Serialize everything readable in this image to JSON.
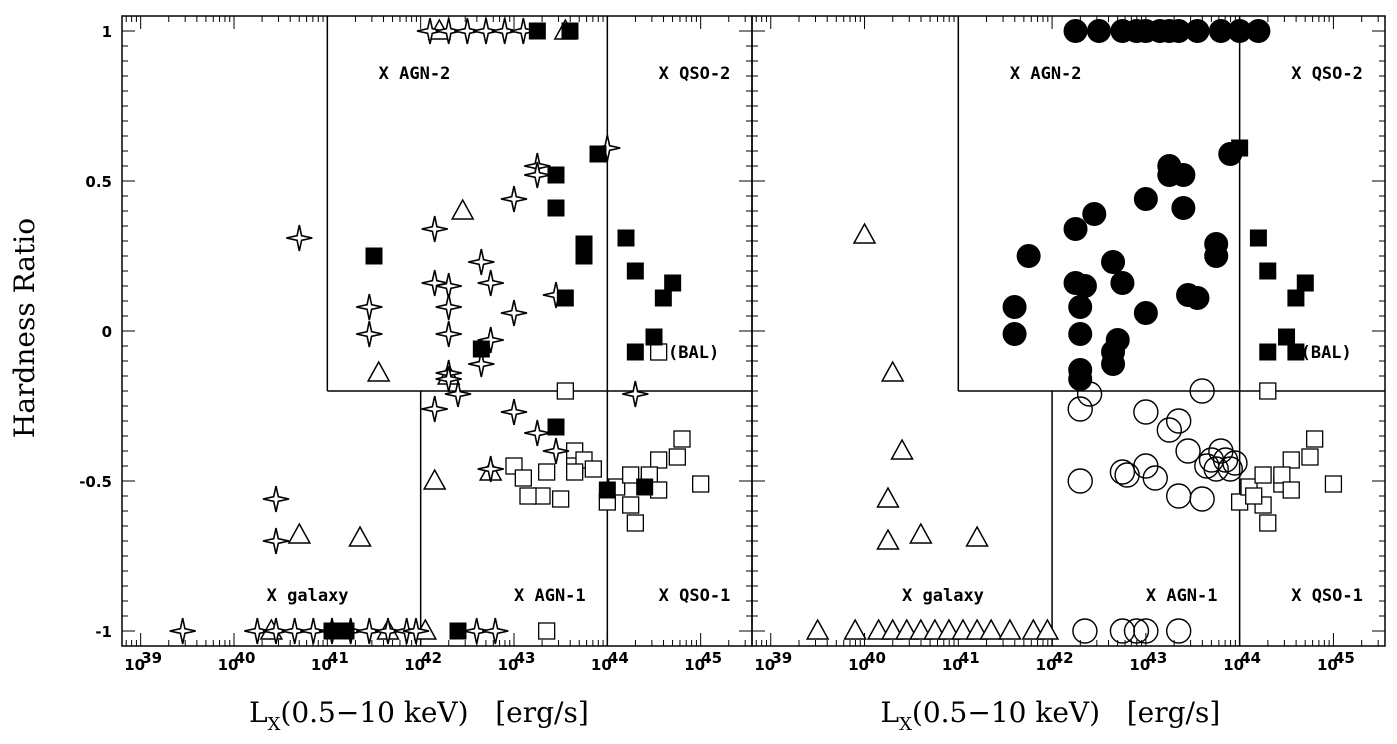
{
  "chart_data": {
    "type": "scatter",
    "ylabel": "Hardness Ratio",
    "xlim_log": [
      38.8,
      45.55
    ],
    "ylim": [
      -1.05,
      1.05
    ],
    "x_ticks": [
      39,
      40,
      41,
      42,
      43,
      44,
      45
    ],
    "y_ticks": [
      {
        "v": 1,
        "label": "1"
      },
      {
        "v": 0.5,
        "label": "0.5"
      },
      {
        "v": 0,
        "label": "0"
      },
      {
        "v": -0.5,
        "label": "-0.5"
      },
      {
        "v": -1,
        "label": "-1"
      }
    ],
    "panels": [
      {
        "xlabel_main": "L",
        "xlabel_sub": "X",
        "xlabel_rest": "(0.5−10 keV)   [erg/s]",
        "regions": {
          "agn_min": 41.0,
          "agn1_min": 42.0,
          "qso_min": 44.0,
          "type2_hr": -0.2
        },
        "region_labels": [
          {
            "text": "X AGN-2",
            "x": 41.55,
            "y": 0.86
          },
          {
            "text": "X QSO-2",
            "x": 44.55,
            "y": 0.86
          },
          {
            "text": "X galaxy",
            "x": 40.35,
            "y": -0.88
          },
          {
            "text": "X AGN-1",
            "x": 43.0,
            "y": -0.88
          },
          {
            "text": "X QSO-1",
            "x": 44.55,
            "y": -0.88
          },
          {
            "text": "(BAL)",
            "x": 44.65,
            "y": -0.07
          }
        ],
        "series": [
          {
            "name": "star",
            "points": [
              [
                40.7,
                0.31
              ],
              [
                40.45,
                -0.56
              ],
              [
                40.45,
                -0.7
              ],
              [
                39.45,
                -1
              ],
              [
                40.25,
                -1
              ],
              [
                40.45,
                -1
              ],
              [
                40.65,
                -1
              ],
              [
                40.85,
                -1
              ],
              [
                41.05,
                -1
              ],
              [
                41.25,
                -1
              ],
              [
                41.45,
                -1
              ],
              [
                41.65,
                -1
              ],
              [
                41.85,
                -1
              ],
              [
                41.95,
                -1
              ],
              [
                41.45,
                0.08
              ],
              [
                41.45,
                -0.01
              ],
              [
                42.15,
                0.34
              ],
              [
                42.15,
                0.16
              ],
              [
                42.3,
                0.15
              ],
              [
                42.3,
                0.08
              ],
              [
                42.3,
                -0.01
              ],
              [
                42.3,
                -0.14
              ],
              [
                42.3,
                -0.16
              ],
              [
                42.15,
                -0.26
              ],
              [
                42.4,
                -0.21
              ],
              [
                42.65,
                0.23
              ],
              [
                42.75,
                0.16
              ],
              [
                42.75,
                -0.03
              ],
              [
                42.65,
                -0.11
              ],
              [
                43.0,
                0.44
              ],
              [
                43.0,
                0.06
              ],
              [
                43.0,
                -0.27
              ],
              [
                43.25,
                0.55
              ],
              [
                43.25,
                0.52
              ],
              [
                43.45,
                0.12
              ],
              [
                43.45,
                -0.4
              ],
              [
                43.25,
                -0.34
              ],
              [
                42.75,
                -0.46
              ],
              [
                44.3,
                -0.21
              ],
              [
                44.0,
                0.61
              ],
              [
                42.1,
                1
              ],
              [
                42.3,
                1
              ],
              [
                42.5,
                1
              ],
              [
                42.7,
                1
              ],
              [
                42.9,
                1
              ],
              [
                43.1,
                1
              ],
              [
                42.6,
                -1
              ],
              [
                42.8,
                -1
              ]
            ]
          },
          {
            "name": "triangle",
            "points": [
              [
                41.55,
                -0.14
              ],
              [
                40.4,
                -1
              ],
              [
                40.7,
                -0.68
              ],
              [
                41.35,
                -0.69
              ],
              [
                42.15,
                -0.5
              ],
              [
                42.2,
                1
              ],
              [
                43.55,
                1
              ],
              [
                42.45,
                0.4
              ],
              [
                42.75,
                -0.47
              ],
              [
                42.3,
                -0.15
              ],
              [
                42.05,
                -1
              ],
              [
                41.65,
                -1
              ]
            ]
          },
          {
            "name": "filled_square",
            "points": [
              [
                41.5,
                0.25
              ],
              [
                43.25,
                1
              ],
              [
                43.6,
                1
              ],
              [
                43.45,
                0.52
              ],
              [
                43.45,
                0.41
              ],
              [
                43.75,
                0.29
              ],
              [
                43.75,
                0.25
              ],
              [
                43.55,
                0.11
              ],
              [
                42.65,
                -0.06
              ],
              [
                43.45,
                -0.32
              ],
              [
                43.9,
                0.59
              ],
              [
                44.2,
                0.31
              ],
              [
                44.3,
                0.2
              ],
              [
                44.6,
                0.11
              ],
              [
                44.7,
                0.16
              ],
              [
                44.5,
                -0.02
              ],
              [
                44.3,
                -0.07
              ],
              [
                44.0,
                -0.53
              ],
              [
                44.4,
                -0.52
              ],
              [
                41.05,
                -1
              ],
              [
                41.2,
                -1
              ],
              [
                42.4,
                -1
              ]
            ]
          },
          {
            "name": "open_square",
            "points": [
              [
                44.55,
                -0.07
              ],
              [
                43.55,
                -0.2
              ],
              [
                43.3,
                -0.55
              ],
              [
                43.5,
                -0.56
              ],
              [
                43.15,
                -0.55
              ],
              [
                43.35,
                -0.47
              ],
              [
                43.0,
                -0.45
              ],
              [
                43.1,
                -0.49
              ],
              [
                43.65,
                -0.4
              ],
              [
                43.65,
                -0.45
              ],
              [
                43.75,
                -0.43
              ],
              [
                43.85,
                -0.46
              ],
              [
                43.65,
                -0.47
              ],
              [
                44.0,
                -0.57
              ],
              [
                44.1,
                -0.52
              ],
              [
                44.25,
                -0.48
              ],
              [
                44.25,
                -0.58
              ],
              [
                44.3,
                -0.64
              ],
              [
                44.45,
                -0.51
              ],
              [
                44.55,
                -0.43
              ],
              [
                44.8,
                -0.36
              ],
              [
                44.75,
                -0.42
              ],
              [
                44.45,
                -0.48
              ],
              [
                44.55,
                -0.53
              ],
              [
                45.0,
                -0.51
              ],
              [
                43.35,
                -1
              ]
            ]
          }
        ]
      },
      {
        "xlabel_main": "L",
        "xlabel_sub": "X",
        "xlabel_rest": "(0.5−10 keV)   [erg/s]",
        "regions": {
          "agn_min": 41.0,
          "agn1_min": 42.0,
          "qso_min": 44.0,
          "type2_hr": -0.2
        },
        "region_labels": [
          {
            "text": "X AGN-2",
            "x": 41.55,
            "y": 0.86
          },
          {
            "text": "X QSO-2",
            "x": 44.55,
            "y": 0.86
          },
          {
            "text": "X galaxy",
            "x": 40.4,
            "y": -0.88
          },
          {
            "text": "X AGN-1",
            "x": 43.0,
            "y": -0.88
          },
          {
            "text": "X QSO-1",
            "x": 44.55,
            "y": -0.88
          },
          {
            "text": "(BAL)",
            "x": 44.65,
            "y": -0.07
          }
        ],
        "series": [
          {
            "name": "filled_circle",
            "points": [
              [
                42.25,
                1
              ],
              [
                42.5,
                1
              ],
              [
                42.75,
                1
              ],
              [
                42.9,
                1
              ],
              [
                43.0,
                1
              ],
              [
                43.15,
                1
              ],
              [
                43.25,
                1
              ],
              [
                43.35,
                1
              ],
              [
                43.55,
                1
              ],
              [
                43.8,
                1
              ],
              [
                44.0,
                1
              ],
              [
                44.2,
                1
              ],
              [
                41.6,
                0.08
              ],
              [
                41.6,
                -0.01
              ],
              [
                41.75,
                0.25
              ],
              [
                42.25,
                0.34
              ],
              [
                42.45,
                0.39
              ],
              [
                42.25,
                0.16
              ],
              [
                42.35,
                0.15
              ],
              [
                42.3,
                0.08
              ],
              [
                42.3,
                -0.01
              ],
              [
                42.3,
                -0.13
              ],
              [
                42.3,
                -0.16
              ],
              [
                42.65,
                0.23
              ],
              [
                42.75,
                0.16
              ],
              [
                42.7,
                -0.03
              ],
              [
                42.65,
                -0.07
              ],
              [
                42.65,
                -0.11
              ],
              [
                43.0,
                0.44
              ],
              [
                43.0,
                0.06
              ],
              [
                43.25,
                0.55
              ],
              [
                43.25,
                0.52
              ],
              [
                43.4,
                0.52
              ],
              [
                43.4,
                0.41
              ],
              [
                43.45,
                0.12
              ],
              [
                43.55,
                0.11
              ],
              [
                43.75,
                0.29
              ],
              [
                43.75,
                0.25
              ],
              [
                43.9,
                0.59
              ]
            ]
          },
          {
            "name": "open_circle",
            "points": [
              [
                42.3,
                -0.26
              ],
              [
                42.4,
                -0.21
              ],
              [
                42.3,
                -0.5
              ],
              [
                42.75,
                -0.47
              ],
              [
                42.8,
                -0.48
              ],
              [
                43.0,
                -0.27
              ],
              [
                43.0,
                -0.45
              ],
              [
                43.1,
                -0.49
              ],
              [
                43.25,
                -0.33
              ],
              [
                43.35,
                -0.3
              ],
              [
                43.35,
                -0.55
              ],
              [
                43.45,
                -0.4
              ],
              [
                43.6,
                -0.2
              ],
              [
                43.6,
                -0.56
              ],
              [
                43.65,
                -0.45
              ],
              [
                43.7,
                -0.43
              ],
              [
                43.75,
                -0.46
              ],
              [
                43.8,
                -0.4
              ],
              [
                43.85,
                -0.43
              ],
              [
                43.9,
                -0.46
              ],
              [
                43.95,
                -0.44
              ],
              [
                42.35,
                -1
              ],
              [
                42.75,
                -1
              ],
              [
                42.9,
                -1
              ],
              [
                43.0,
                -1
              ],
              [
                43.35,
                -1
              ]
            ]
          },
          {
            "name": "triangle",
            "points": [
              [
                39.5,
                -1
              ],
              [
                39.9,
                -1
              ],
              [
                40.0,
                0.32
              ],
              [
                40.3,
                -0.14
              ],
              [
                40.4,
                -0.4
              ],
              [
                40.25,
                -0.56
              ],
              [
                40.25,
                -0.7
              ],
              [
                40.6,
                -0.68
              ],
              [
                41.2,
                -0.69
              ],
              [
                40.15,
                -1
              ],
              [
                40.3,
                -1
              ],
              [
                40.45,
                -1
              ],
              [
                40.6,
                -1
              ],
              [
                40.75,
                -1
              ],
              [
                40.9,
                -1
              ],
              [
                41.05,
                -1
              ],
              [
                41.2,
                -1
              ],
              [
                41.35,
                -1
              ],
              [
                41.55,
                -1
              ],
              [
                41.8,
                -1
              ],
              [
                41.95,
                -1
              ]
            ]
          },
          {
            "name": "filled_square",
            "points": [
              [
                44.2,
                0.31
              ],
              [
                44.3,
                0.2
              ],
              [
                44.6,
                0.11
              ],
              [
                44.7,
                0.16
              ],
              [
                44.5,
                -0.02
              ],
              [
                44.3,
                -0.07
              ],
              [
                44.6,
                -0.07
              ],
              [
                44.0,
                0.61
              ]
            ]
          },
          {
            "name": "open_square",
            "points": [
              [
                44.3,
                -0.2
              ],
              [
                44.0,
                -0.57
              ],
              [
                44.1,
                -0.52
              ],
              [
                44.25,
                -0.48
              ],
              [
                44.25,
                -0.58
              ],
              [
                44.3,
                -0.64
              ],
              [
                44.45,
                -0.51
              ],
              [
                44.55,
                -0.43
              ],
              [
                44.8,
                -0.36
              ],
              [
                44.75,
                -0.42
              ],
              [
                44.45,
                -0.48
              ],
              [
                44.55,
                -0.53
              ],
              [
                45.0,
                -0.51
              ],
              [
                44.15,
                -0.55
              ]
            ]
          }
        ]
      }
    ]
  }
}
